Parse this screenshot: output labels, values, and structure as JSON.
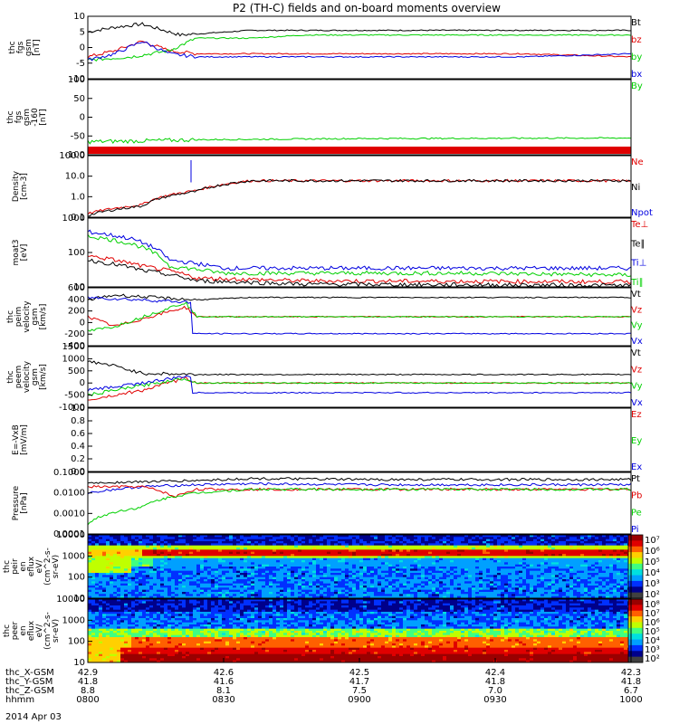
{
  "title": "P2 (TH-C) fields and on-board moments overview",
  "date": "2014 Apr 03",
  "colors": {
    "black": "#000000",
    "red": "#e00000",
    "green": "#00d000",
    "blue": "#0000e0"
  },
  "chart_data": [
    {
      "type": "line",
      "ylabel": [
        "thc",
        "fgs",
        "gsm",
        "[nT]"
      ],
      "ylim": [
        -10,
        10
      ],
      "yticks": [
        "10",
        "5",
        "0",
        "-5",
        "-10"
      ],
      "legend": [
        {
          "label": "Bt",
          "color": "black"
        },
        {
          "label": "bz",
          "color": "red"
        },
        {
          "label": "by",
          "color": "green"
        },
        {
          "label": "bx",
          "color": "blue"
        }
      ],
      "series": [
        {
          "name": "Bt",
          "color": "black",
          "x": [
            0,
            0.05,
            0.1,
            0.13,
            0.17,
            0.3,
            0.5,
            0.7,
            0.9,
            1
          ],
          "y": [
            5,
            6.5,
            7.5,
            6,
            4,
            5.5,
            5.5,
            5.5,
            5.5,
            5.5
          ]
        },
        {
          "name": "bz",
          "color": "red",
          "x": [
            0,
            0.05,
            0.1,
            0.15,
            0.2,
            0.4,
            0.6,
            0.8,
            1
          ],
          "y": [
            -3,
            -1,
            2,
            -1,
            -2,
            -2,
            -2,
            -2,
            -3
          ]
        },
        {
          "name": "by",
          "color": "green",
          "x": [
            0,
            0.08,
            0.15,
            0.2,
            0.3,
            0.4,
            0.5,
            0.7,
            1
          ],
          "y": [
            -4,
            -3,
            -1,
            3,
            3,
            4,
            4,
            4,
            4
          ]
        },
        {
          "name": "bx",
          "color": "blue",
          "x": [
            0,
            0.05,
            0.1,
            0.15,
            0.2,
            0.4,
            0.6,
            0.8,
            1
          ],
          "y": [
            -4,
            -2,
            2,
            -2,
            -3,
            -3,
            -3,
            -3,
            -2
          ]
        }
      ]
    },
    {
      "type": "line",
      "ylabel": [
        "thc",
        "fgs",
        "gsm",
        "-160",
        "[nT]"
      ],
      "ylim": [
        -160,
        100
      ],
      "yticks": [
        "100",
        "50",
        "0",
        "-50",
        "-100"
      ],
      "legend": [
        {
          "label": "By",
          "color": "green"
        }
      ],
      "series": [
        {
          "name": "By",
          "color": "green",
          "x": [
            0,
            0.1,
            0.2,
            0.5,
            1
          ],
          "y": [
            -115,
            -112,
            -108,
            -104,
            -102
          ]
        }
      ]
    },
    {
      "type": "line",
      "log": true,
      "ylabel": [
        "Density",
        "[cm-3]"
      ],
      "ylim": [
        0.1,
        100
      ],
      "yticks": [
        "100.0",
        "10.0",
        "1.0",
        "0.1"
      ],
      "legend": [
        {
          "label": "Ne",
          "color": "red"
        },
        {
          "label": "Ni",
          "color": "black"
        },
        {
          "label": "Npot",
          "color": "blue"
        }
      ],
      "series": [
        {
          "name": "Ne",
          "color": "red",
          "x": [
            0,
            0.1,
            0.2,
            0.3,
            1
          ],
          "y": [
            0.15,
            0.4,
            2,
            6,
            6
          ]
        },
        {
          "name": "Ni",
          "color": "black",
          "x": [
            0,
            0.1,
            0.2,
            0.3,
            1
          ],
          "y": [
            0.12,
            0.35,
            1.8,
            6,
            6
          ]
        },
        {
          "name": "Npot",
          "color": "blue",
          "x": [
            0.19,
            0.19,
            0.191
          ],
          "y": [
            5,
            60,
            5
          ]
        }
      ]
    },
    {
      "type": "line",
      "log": true,
      "ylabel": [
        "moat3",
        "[eV]"
      ],
      "ylim": [
        10,
        1000
      ],
      "yticks": [
        "1000",
        "100",
        "10"
      ],
      "legend": [
        {
          "label": "Te⊥",
          "color": "red"
        },
        {
          "label": "Te∥",
          "color": "black"
        },
        {
          "label": "Ti⊥",
          "color": "blue"
        },
        {
          "label": "Ti∥",
          "color": "green"
        }
      ],
      "series": [
        {
          "name": "Ti⊥",
          "color": "blue",
          "x": [
            0,
            0.08,
            0.15,
            0.25,
            0.4,
            0.7,
            1
          ],
          "y": [
            400,
            250,
            60,
            35,
            35,
            35,
            35
          ]
        },
        {
          "name": "Ti∥",
          "color": "green",
          "x": [
            0,
            0.08,
            0.15,
            0.25,
            0.4,
            0.7,
            1
          ],
          "y": [
            300,
            180,
            40,
            25,
            25,
            25,
            22
          ]
        },
        {
          "name": "Te⊥",
          "color": "red",
          "x": [
            0,
            0.1,
            0.2,
            0.4,
            1
          ],
          "y": [
            80,
            40,
            18,
            15,
            14
          ]
        },
        {
          "name": "Te∥",
          "color": "black",
          "x": [
            0,
            0.1,
            0.2,
            0.4,
            1
          ],
          "y": [
            60,
            30,
            15,
            12,
            11
          ]
        }
      ]
    },
    {
      "type": "line",
      "ylabel": [
        "thc",
        "peim",
        "velocity",
        "gsm",
        "[km/s]"
      ],
      "ylim": [
        -600,
        600
      ],
      "yticks": [
        "600",
        "400",
        "200",
        "0",
        "-200",
        "-400"
      ],
      "legend": [
        {
          "label": "Vt",
          "color": "black"
        },
        {
          "label": "Vz",
          "color": "red"
        },
        {
          "label": "Vy",
          "color": "green"
        },
        {
          "label": "Vx",
          "color": "blue"
        }
      ],
      "series": [
        {
          "name": "Vt",
          "color": "black",
          "x": [
            0,
            0.05,
            0.15,
            0.2,
            0.3,
            1
          ],
          "y": [
            350,
            450,
            380,
            350,
            400,
            400
          ]
        },
        {
          "name": "Vz",
          "color": "red",
          "x": [
            0,
            0.05,
            0.18,
            0.2,
            0.3,
            1
          ],
          "y": [
            0,
            -200,
            200,
            0,
            0,
            0
          ]
        },
        {
          "name": "Vy",
          "color": "green",
          "x": [
            0,
            0.05,
            0.18,
            0.2,
            0.3,
            1
          ],
          "y": [
            -300,
            -200,
            300,
            0,
            0,
            0
          ]
        },
        {
          "name": "Vx",
          "color": "blue",
          "x": [
            0,
            0.1,
            0.19,
            0.19,
            0.3,
            1
          ],
          "y": [
            400,
            350,
            300,
            -350,
            -350,
            -350
          ]
        }
      ]
    },
    {
      "type": "line",
      "ylabel": [
        "thc",
        "peem",
        "velocity",
        "gsm",
        "[km/s]"
      ],
      "ylim": [
        -1000,
        1500
      ],
      "yticks": [
        "1500",
        "1000",
        "500",
        "0",
        "-500",
        "-1000"
      ],
      "legend": [
        {
          "label": "Vt",
          "color": "black"
        },
        {
          "label": "Vz",
          "color": "red"
        },
        {
          "label": "Vy",
          "color": "green"
        },
        {
          "label": "Vx",
          "color": "blue"
        }
      ],
      "series": [
        {
          "name": "Vt",
          "color": "black",
          "x": [
            0,
            0.05,
            0.1,
            0.2,
            0.3,
            1
          ],
          "y": [
            900,
            700,
            400,
            350,
            350,
            350
          ]
        },
        {
          "name": "Vz",
          "color": "red",
          "x": [
            0,
            0.1,
            0.18,
            0.2,
            0.3,
            1
          ],
          "y": [
            -700,
            -300,
            200,
            0,
            0,
            0
          ]
        },
        {
          "name": "Vy",
          "color": "green",
          "x": [
            0,
            0.1,
            0.18,
            0.2,
            0.3,
            1
          ],
          "y": [
            -500,
            -100,
            200,
            0,
            0,
            0
          ]
        },
        {
          "name": "Vx",
          "color": "blue",
          "x": [
            0,
            0.1,
            0.19,
            0.19,
            0.3,
            1
          ],
          "y": [
            -300,
            0,
            300,
            -400,
            -400,
            -400
          ]
        }
      ]
    },
    {
      "type": "line",
      "ylabel": [
        "E=-VxB",
        "[mV/m]"
      ],
      "ylim": [
        0,
        1
      ],
      "yticks": [
        "1.0",
        "0.8",
        "0.6",
        "0.4",
        "0.2",
        "0.0"
      ],
      "legend": [
        {
          "label": "Ez",
          "color": "red"
        },
        {
          "label": "Ey",
          "color": "green"
        },
        {
          "label": "Ex",
          "color": "blue"
        }
      ],
      "series": []
    },
    {
      "type": "line",
      "log": true,
      "ylabel": [
        "Pressure",
        "[nPa]"
      ],
      "ylim": [
        0.0001,
        0.1
      ],
      "yticks": [
        "0.1000",
        "0.0100",
        "0.0010",
        "0.0001"
      ],
      "legend": [
        {
          "label": "Pt",
          "color": "black"
        },
        {
          "label": "Pb",
          "color": "red"
        },
        {
          "label": "Pe",
          "color": "green"
        },
        {
          "label": "Pi",
          "color": "blue"
        }
      ],
      "series": [
        {
          "name": "Pt",
          "color": "black",
          "x": [
            0,
            0.1,
            0.2,
            0.3,
            0.5,
            1
          ],
          "y": [
            0.03,
            0.035,
            0.04,
            0.05,
            0.045,
            0.045
          ]
        },
        {
          "name": "Pi",
          "color": "blue",
          "x": [
            0,
            0.1,
            0.2,
            0.3,
            0.5,
            1
          ],
          "y": [
            0.01,
            0.02,
            0.025,
            0.028,
            0.025,
            0.025
          ]
        },
        {
          "name": "Pb",
          "color": "red",
          "x": [
            0,
            0.1,
            0.16,
            0.2,
            0.3,
            1
          ],
          "y": [
            0.02,
            0.02,
            0.006,
            0.015,
            0.015,
            0.015
          ]
        },
        {
          "name": "Pe",
          "color": "green",
          "x": [
            0,
            0.1,
            0.2,
            0.3,
            1
          ],
          "y": [
            0.0003,
            0.002,
            0.01,
            0.015,
            0.015
          ]
        }
      ]
    },
    {
      "type": "heatmap",
      "ylabel": [
        "thc",
        "peir",
        "en",
        "eflux",
        "eV/",
        "(cm^2-s-",
        "sr-eV)"
      ],
      "ylim": [
        5,
        20000
      ],
      "yticks": [
        "10000",
        "1000",
        "100",
        "10"
      ]
    },
    {
      "type": "heatmap",
      "ylabel": [
        "thc",
        "peer",
        "en",
        "eflux",
        "eV/",
        "(cm^2-s-",
        "sr-eV)"
      ],
      "ylim": [
        5,
        20000
      ],
      "yticks": [
        "10000",
        "1000",
        "100",
        "10"
      ]
    }
  ],
  "colorbars": [
    {
      "labels": [
        "10⁷",
        "10⁶",
        "10⁵",
        "10⁴",
        "10³",
        "10²"
      ]
    },
    {
      "labels": [
        "10⁸",
        "10⁷",
        "10⁶",
        "10⁵",
        "10⁴",
        "10³",
        "10²"
      ]
    }
  ],
  "xaxis": {
    "rows": [
      {
        "label": "thc_X-GSM",
        "values": [
          "42.9",
          "42.6",
          "42.5",
          "42.4",
          "42.3"
        ]
      },
      {
        "label": "thc_Y-GSM",
        "values": [
          "41.8",
          "41.6",
          "41.7",
          "41.8",
          "41.8"
        ]
      },
      {
        "label": "thc_Z-GSM",
        "values": [
          "8.8",
          "8.1",
          "7.5",
          "7.0",
          "6.7"
        ]
      },
      {
        "label": "hhmm",
        "values": [
          "0800",
          "0830",
          "0900",
          "0930",
          "1000"
        ]
      }
    ]
  }
}
